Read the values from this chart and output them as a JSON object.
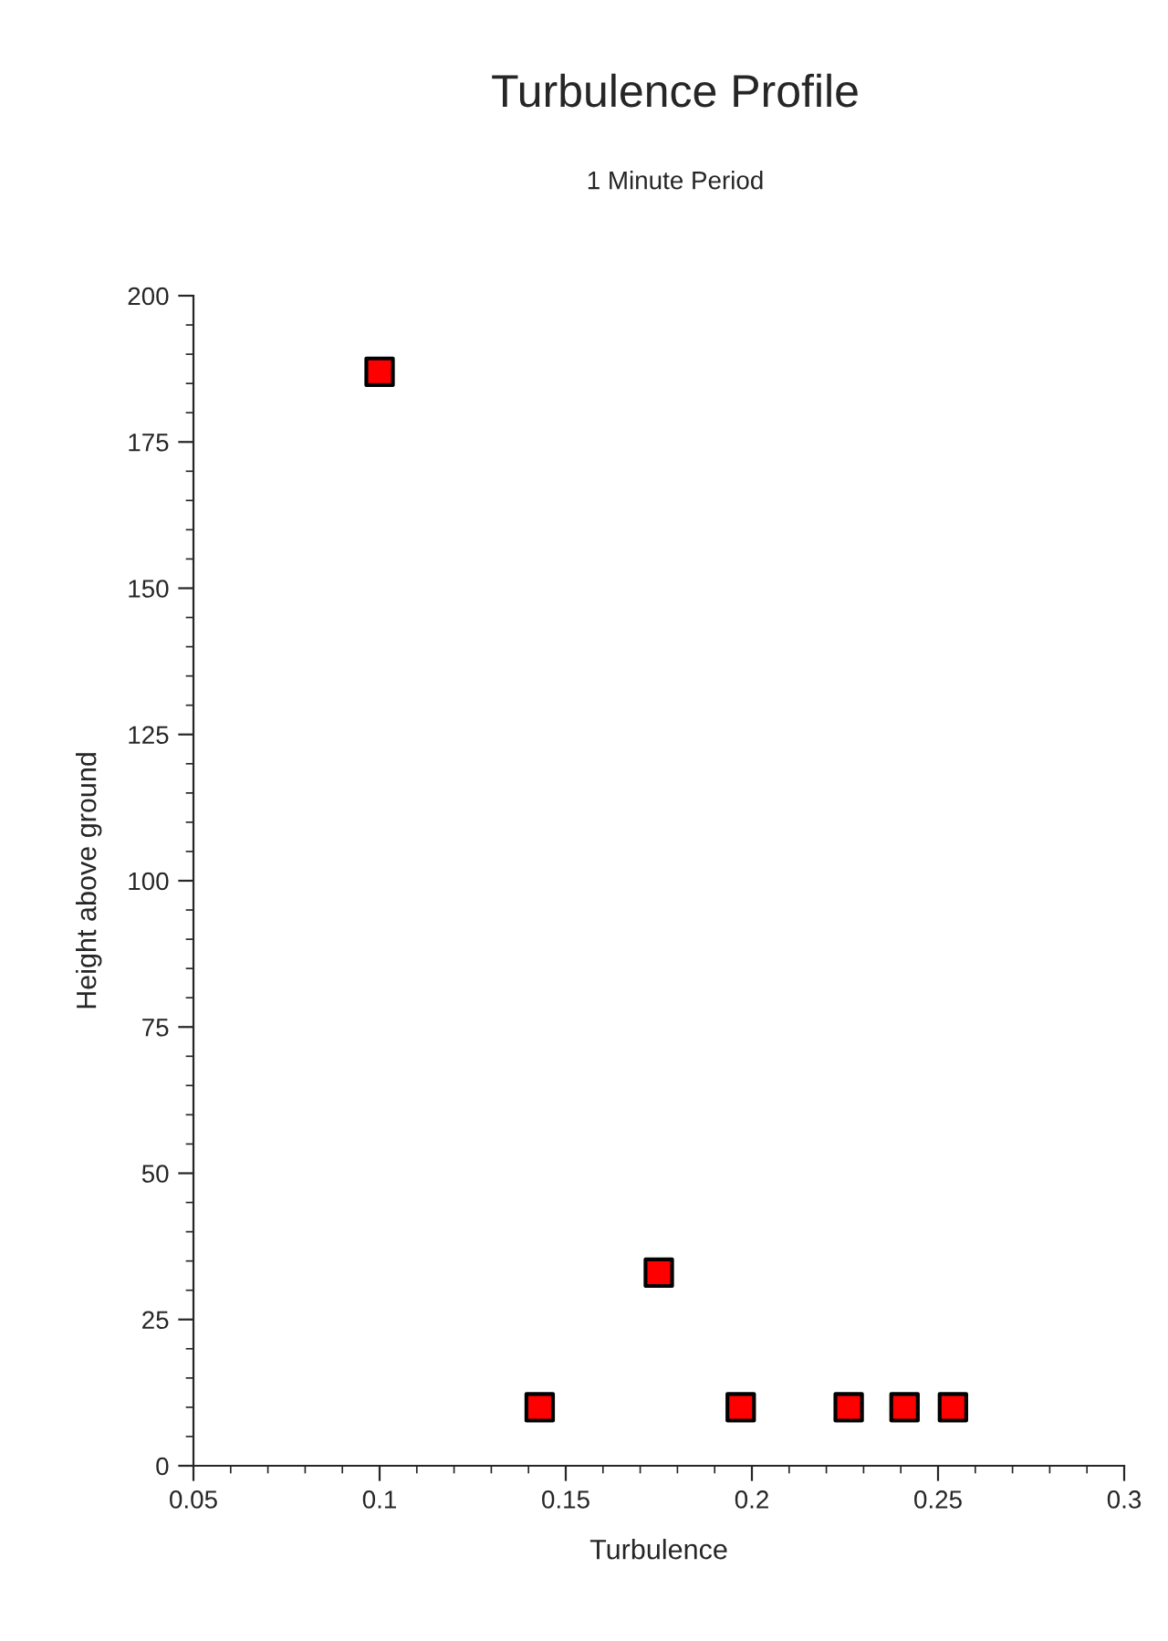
{
  "chart_data": {
    "type": "scatter",
    "title": "Turbulence Profile",
    "subtitle": "1 Minute Period",
    "xlabel": "Turbulence",
    "ylabel": "Height above ground",
    "x": [
      0.1,
      0.143,
      0.175,
      0.197,
      0.226,
      0.241,
      0.254
    ],
    "series": [
      {
        "color": "#ff0000",
        "values": [
          187,
          10,
          33,
          10,
          10,
          10,
          10
        ]
      }
    ],
    "marker": "square",
    "xlim": [
      0.05,
      0.3
    ],
    "xticks": [
      {
        "value": 0.05,
        "label": "0.05"
      },
      {
        "value": 0.1,
        "label": "0.1"
      },
      {
        "value": 0.15,
        "label": "0.15"
      },
      {
        "value": 0.2,
        "label": "0.2"
      },
      {
        "value": 0.25,
        "label": "0.25"
      },
      {
        "value": 0.3,
        "label": "0.3"
      }
    ],
    "ylim": [
      0,
      200
    ],
    "yticks": [
      0,
      25,
      50,
      75,
      100,
      125,
      150,
      175,
      200
    ],
    "grid": false,
    "legend": false
  }
}
